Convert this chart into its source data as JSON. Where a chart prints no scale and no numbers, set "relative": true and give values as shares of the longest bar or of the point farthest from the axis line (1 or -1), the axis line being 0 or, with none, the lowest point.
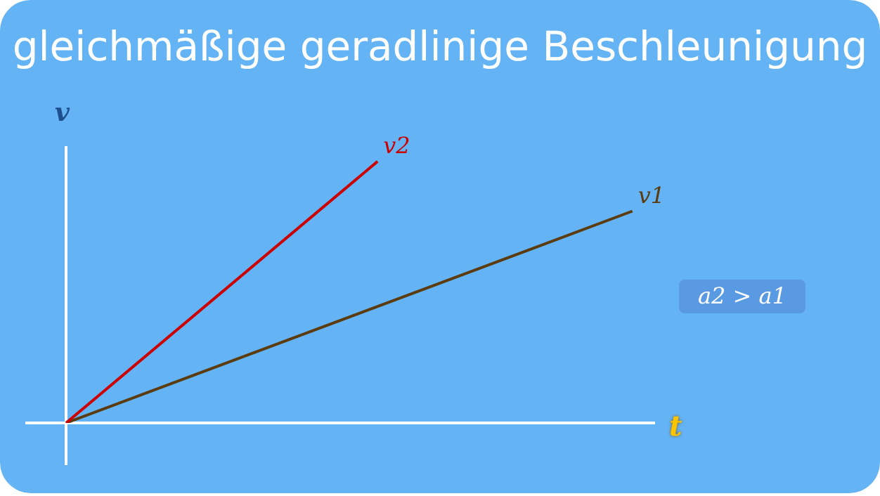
{
  "chart_data": {
    "type": "line",
    "title": "gleichmäßige geradlinige Beschleunigung",
    "xlabel": "t",
    "ylabel": "v",
    "relative": true,
    "legend": false,
    "grid": false,
    "marker": "none",
    "line_style": "solid",
    "categories": [
      null,
      null,
      null,
      null,
      null,
      null,
      null,
      null,
      null,
      null,
      null,
      null,
      null,
      null,
      null,
      null,
      null,
      null,
      null,
      null,
      null,
      null
    ],
    "series": [
      {
        "name": "v2",
        "color": "#cc0000",
        "values": [
          0,
          null,
          null,
          null,
          null,
          null,
          null,
          null,
          null,
          null,
          null,
          1,
          null,
          null,
          null,
          null,
          null,
          null,
          null,
          null,
          null,
          null
        ]
      },
      {
        "name": "v1",
        "color": "#5c3b0e",
        "values": [
          0,
          null,
          null,
          null,
          null,
          null,
          null,
          null,
          null,
          null,
          null,
          null,
          null,
          null,
          null,
          null,
          null,
          null,
          null,
          null,
          0.81,
          null
        ]
      }
    ],
    "annotations": [
      "a2 > a1"
    ]
  }
}
